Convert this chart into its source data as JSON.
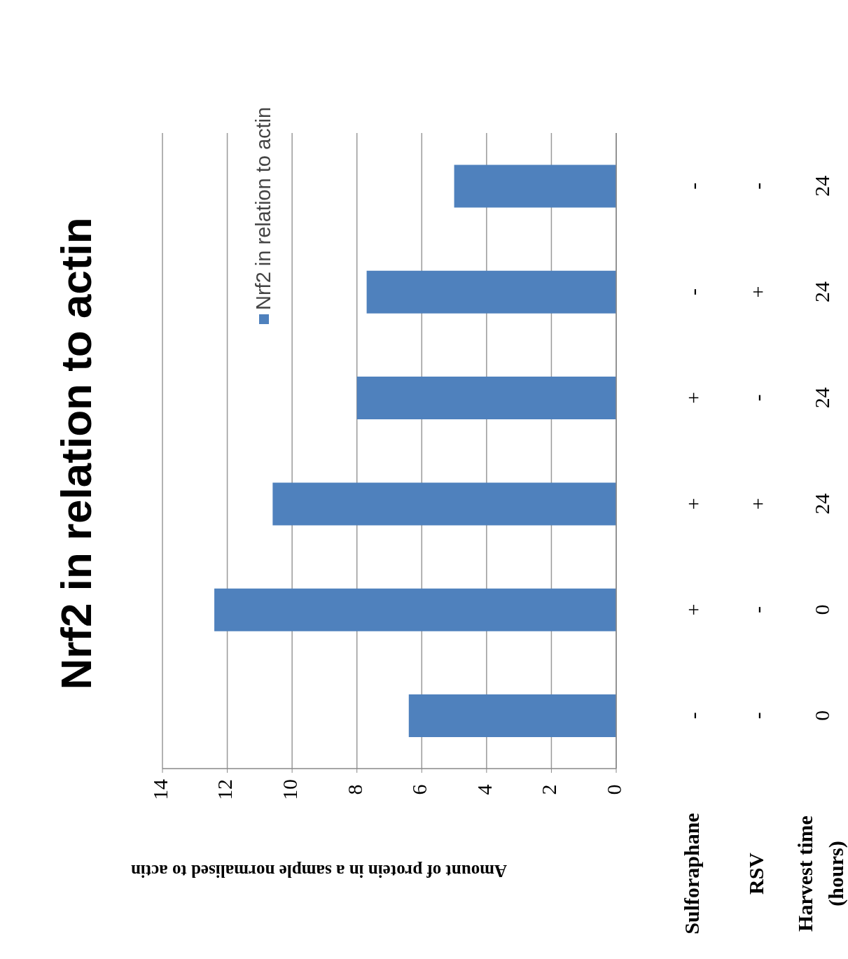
{
  "chart_data": {
    "type": "bar",
    "orientation": "horizontal",
    "title": "Nrf2 in relation to actin",
    "xlabel": "Amount of protein in a sample normalised to actin",
    "categories": [
      "-\n-\n24",
      "-\n+\n24",
      "+\n-\n24",
      "+\n+\n24",
      "+\n-\n0",
      "-\n-\n0"
    ],
    "series": [
      {
        "name": "Nrf2 in relation to actin",
        "color": "#4f81bd",
        "values": [
          5.0,
          7.7,
          8.0,
          10.6,
          12.4,
          6.4
        ]
      }
    ],
    "xlim": [
      14,
      0
    ],
    "xticks": [
      14,
      12,
      10,
      8,
      6,
      4,
      2,
      0
    ],
    "grid": "x",
    "legend": "top left",
    "annotations": [
      "Sulforaphane",
      "RSV",
      "Harvest time (hours)"
    ]
  }
}
